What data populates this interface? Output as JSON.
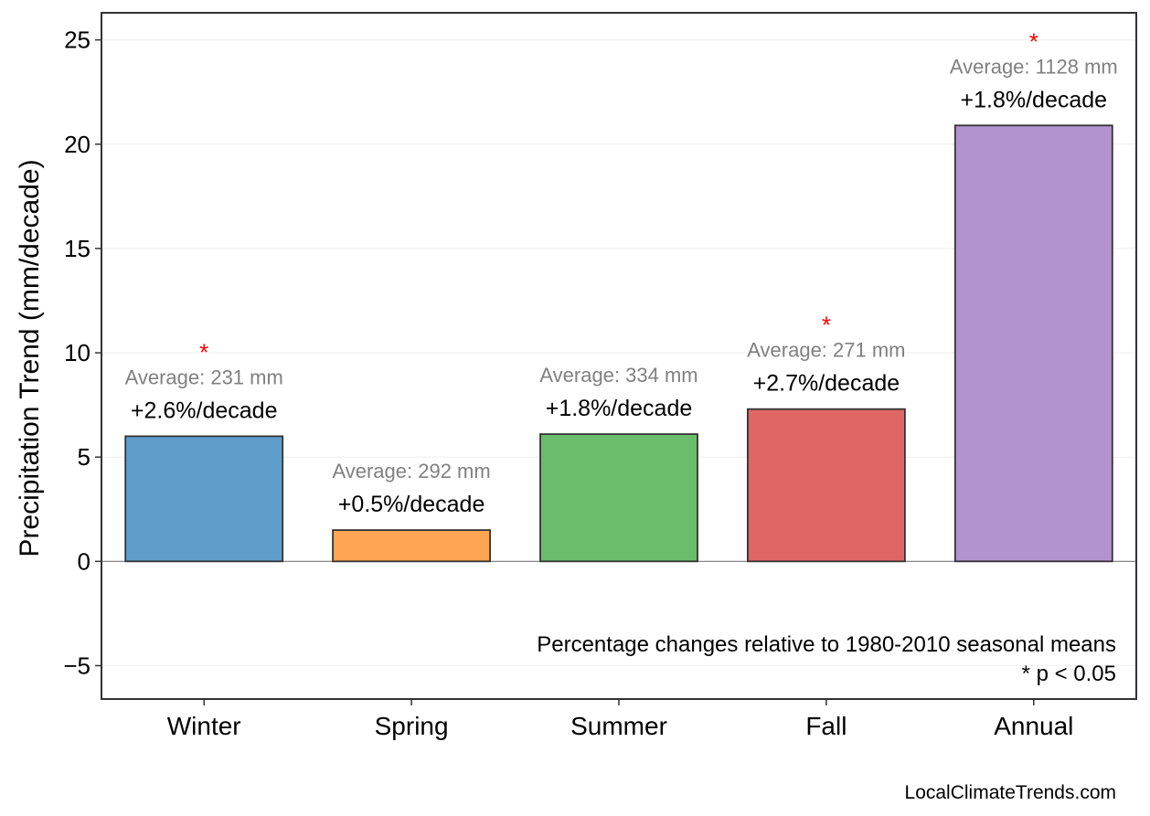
{
  "chart_data": {
    "type": "bar",
    "categories": [
      "Winter",
      "Spring",
      "Summer",
      "Fall",
      "Annual"
    ],
    "values": [
      6.0,
      1.5,
      6.1,
      7.3,
      20.9
    ],
    "colors": [
      "#5f9ecb",
      "#ffa554",
      "#6abd6a",
      "#e06666",
      "#b393cf"
    ],
    "pct_labels": [
      "+2.6%/decade",
      "+0.5%/decade",
      "+1.8%/decade",
      "+2.7%/decade",
      "+1.8%/decade"
    ],
    "avg_labels": [
      "Average: 231 mm",
      "Average: 292 mm",
      "Average: 334 mm",
      "Average: 271 mm",
      "Average: 1128 mm"
    ],
    "significant": [
      true,
      false,
      false,
      true,
      true
    ],
    "significance_marker": "*",
    "ylabel": "Precipitation Trend (mm/decade)",
    "xlabel": "",
    "ylim": [
      -6.6,
      26.3
    ],
    "yticks": [
      -5,
      0,
      5,
      10,
      15,
      20,
      25
    ],
    "ytick_labels": [
      "−5",
      "0",
      "5",
      "10",
      "15",
      "20",
      "25"
    ],
    "grid": true,
    "notes": [
      "Percentage changes relative to 1980-2010 seasonal means",
      "* p < 0.05"
    ],
    "credit": "LocalClimateTrends.com"
  }
}
